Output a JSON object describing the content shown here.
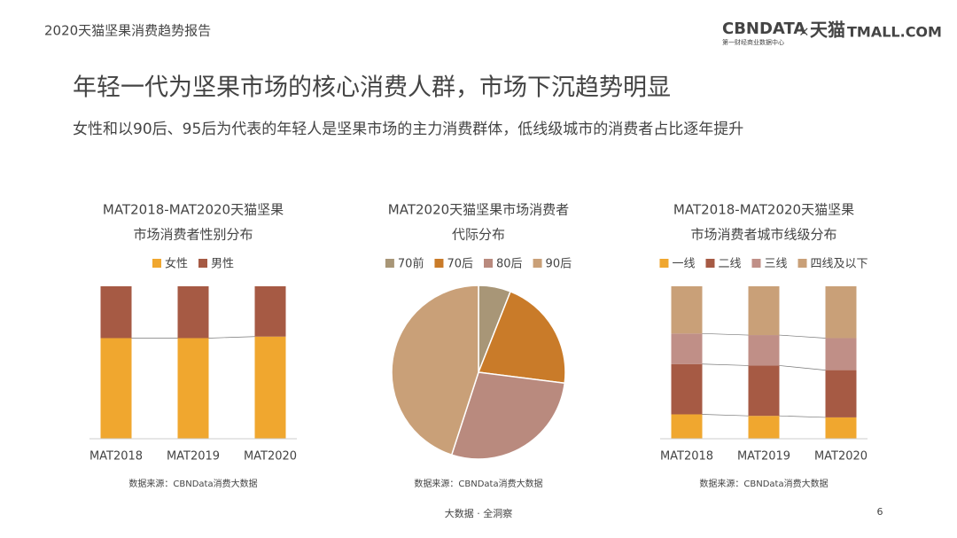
{
  "header": {
    "report": "2020天猫坚果消费趋势报告",
    "logo_cbn": "CBNDATA",
    "logo_cbn_sub": "第一财经商业数据中心",
    "logo_times": "×",
    "logo_tmall_cn": "天猫",
    "logo_tmall": "TMALL.COM"
  },
  "title": "年轻一代为坚果市场的核心消费人群，市场下沉趋势明显",
  "subtitle": "女性和以90后、95后为代表的年轻人是坚果市场的主力消费群体，低线级城市的消费者占比逐年提升",
  "chart_data": [
    {
      "type": "stacked_bar",
      "title": [
        "MAT2018-MAT2020天猫坚果",
        "市场消费者性别分布"
      ],
      "categories": [
        "MAT2018",
        "MAT2019",
        "MAT2020"
      ],
      "series": [
        {
          "name": "女性",
          "color": "#f0a72f",
          "values": [
            66,
            66,
            67
          ]
        },
        {
          "name": "男性",
          "color": "#a65a44",
          "values": [
            34,
            34,
            33
          ]
        }
      ],
      "source": "数据来源：CBNData消费大数据"
    },
    {
      "type": "pie",
      "title": [
        "MAT2020天猫坚果市场消费者",
        "代际分布"
      ],
      "categories": [
        "70前",
        "70后",
        "80后",
        "90后"
      ],
      "values": [
        6,
        21,
        28,
        45
      ],
      "colors": [
        "#a89677",
        "#c97b29",
        "#b98a7e",
        "#c9a078"
      ],
      "source": "数据来源：CBNData消费大数据"
    },
    {
      "type": "stacked_bar",
      "title": [
        "MAT2018-MAT2020天猫坚果",
        "市场消费者城市线级分布"
      ],
      "categories": [
        "MAT2018",
        "MAT2019",
        "MAT2020"
      ],
      "series": [
        {
          "name": "一线",
          "color": "#f0a72f",
          "values": [
            16,
            15,
            14
          ]
        },
        {
          "name": "二线",
          "color": "#a65a44",
          "values": [
            33,
            33,
            31
          ]
        },
        {
          "name": "三线",
          "color": "#c08f87",
          "values": [
            20,
            20,
            21
          ]
        },
        {
          "name": "四线及以下",
          "color": "#c9a078",
          "values": [
            31,
            32,
            34
          ]
        }
      ],
      "source": "数据来源：CBNData消费大数据"
    }
  ],
  "footer": {
    "tagline": "大数据 · 全洞察",
    "page": "6"
  }
}
